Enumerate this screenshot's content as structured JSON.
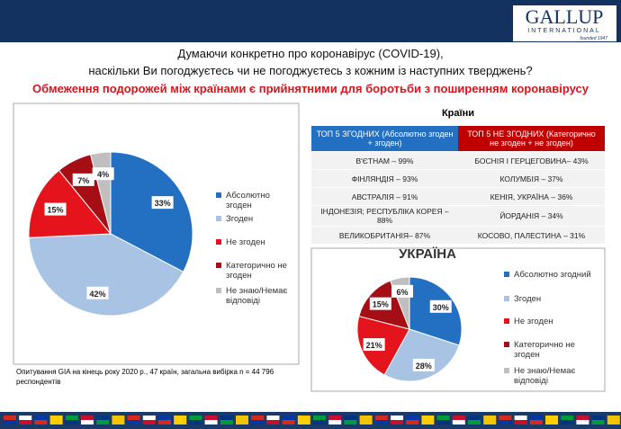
{
  "header": {
    "logo": "GALLUP",
    "logo_sub": "INTERNATIONAL",
    "founded": "founded 1947",
    "title_line1": "Думаючи конкретно про коронавірус (COVID-19),",
    "title_line2": "наскільки Ви погоджуєтесь чи не погоджуєтесь з кожним із наступних тверджень?",
    "subtitle": "Обмеження подорожей між країнами є прийнятними для боротьби з поширенням коронавірусу"
  },
  "chart_data": [
    {
      "type": "pie",
      "categories": [
        "Абсолютно згоден",
        "Згоден",
        "Не згоден",
        "Категорично не згоден",
        "Не знаю/Немає відповіді"
      ],
      "values": [
        33,
        42,
        15,
        7,
        4
      ],
      "value_labels": [
        "33%",
        "42%",
        "15%",
        "7%",
        "4%"
      ],
      "colors": [
        "#2370c2",
        "#a9c3e4",
        "#e5141c",
        "#a40e14",
        "#bfbfbf"
      ]
    },
    {
      "type": "pie",
      "title": "УКРАЇНА",
      "categories": [
        "Абсолютно згодний",
        "Згоден",
        "Не згоден",
        "Категорично не згоден",
        "Не знаю/Немає відповіді"
      ],
      "values": [
        30,
        28,
        21,
        15,
        6
      ],
      "value_labels": [
        "30%",
        "28%",
        "21%",
        "15%",
        "6%"
      ],
      "colors": [
        "#2370c2",
        "#a9c3e4",
        "#e5141c",
        "#a40e14",
        "#bfbfbf"
      ]
    }
  ],
  "table": {
    "title": "Країни",
    "headers": [
      "ТОП 5 ЗГОДНИХ (Абсолютно згоден + згоден)",
      "ТОП 5 НЕ ЗГОДНИХ (Категорично не згоден + не згоден)"
    ],
    "rows": [
      [
        "В'ЄТНАМ – 99%",
        "БОСНІЯ І ГЕРЦЕГОВИНА– 43%"
      ],
      [
        "ФІНЛЯНДІЯ – 93%",
        "КОЛУМБІЯ – 37%"
      ],
      [
        "АВСТРАЛІЯ – 91%",
        "КЕНІЯ, УКРАЇНА – 36%"
      ],
      [
        "ІНДОНЕЗІЯ; РЕСПУБЛІКА КОРЕЯ – 88%",
        "ЙОРДАНІЯ – 34%"
      ],
      [
        "ВЕЛИКОБРИТАНІЯ– 87%",
        "КОСОВО, ПАЛЕСТИНА – 31%"
      ]
    ]
  },
  "footnote": "Опитування GIA на кінець року 2020 р., 47 країн, загальна вибірка n = 44 796 респондентів"
}
